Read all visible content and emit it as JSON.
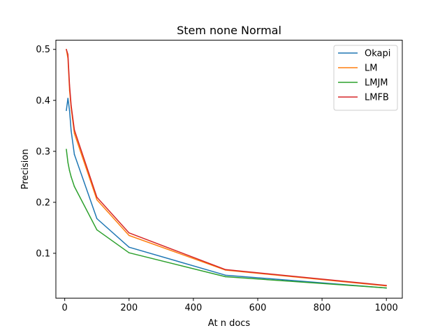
{
  "chart_data": {
    "type": "line",
    "title": "Stem none Normal",
    "xlabel": "At n docs",
    "ylabel": "Precision",
    "xlim": [
      -27.5,
      1049.5
    ],
    "ylim": [
      0.012,
      0.518
    ],
    "xticks": [
      0,
      200,
      400,
      600,
      800,
      1000
    ],
    "yticks": [
      0.1,
      0.2,
      0.3,
      0.4,
      0.5
    ],
    "xtick_labels": [
      "0",
      "200",
      "400",
      "600",
      "800",
      "1000"
    ],
    "ytick_labels": [
      "0.1",
      "0.2",
      "0.3",
      "0.4",
      "0.5"
    ],
    "grid": false,
    "legend_position": "top-right",
    "x": [
      5,
      10,
      15,
      20,
      30,
      100,
      200,
      500,
      1000
    ],
    "series": [
      {
        "name": "Okapi",
        "color": "#1f77b4",
        "values": [
          0.38,
          0.404,
          0.38,
          0.34,
          0.294,
          0.168,
          0.112,
          0.057,
          0.032
        ]
      },
      {
        "name": "LM",
        "color": "#ff7f0e",
        "values": [
          0.5,
          0.482,
          0.42,
          0.385,
          0.335,
          0.205,
          0.135,
          0.067,
          0.036
        ]
      },
      {
        "name": "LMJM",
        "color": "#2ca02c",
        "values": [
          0.304,
          0.278,
          0.262,
          0.25,
          0.231,
          0.146,
          0.101,
          0.054,
          0.032
        ]
      },
      {
        "name": "LMFB",
        "color": "#d62728",
        "values": [
          0.5,
          0.49,
          0.43,
          0.39,
          0.342,
          0.21,
          0.14,
          0.068,
          0.037
        ]
      }
    ]
  }
}
